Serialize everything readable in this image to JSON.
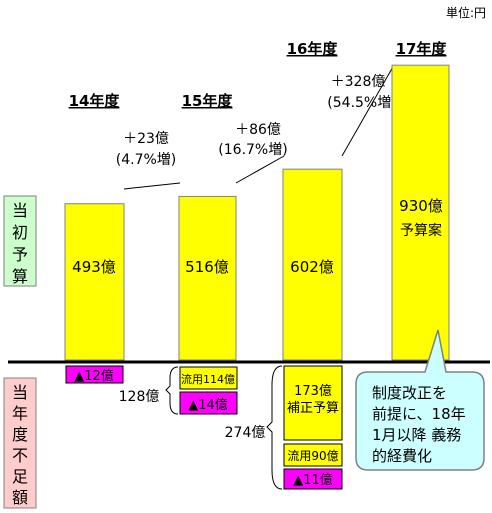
{
  "unit_label": "単位:円",
  "row_labels": {
    "budget": "当初予算",
    "shortfall": "当年度不足額"
  },
  "years": [
    "14年度",
    "15年度",
    "16年度",
    "17年度"
  ],
  "growth": [
    {
      "amount": "＋23億",
      "pct": "(4.7%増)"
    },
    {
      "amount": "＋86億",
      "pct": "(16.7%増)"
    },
    {
      "amount": "＋328億",
      "pct": "(54.5%増)"
    }
  ],
  "bar_labels": [
    "493億",
    "516億",
    "602億",
    "930億"
  ],
  "bar_sublabels": [
    "",
    "",
    "",
    "予算案"
  ],
  "shortfall": {
    "y14": {
      "deficit": "▲12億"
    },
    "y15": {
      "ryuyo": "流用114億",
      "deficit": "▲14億",
      "total": "128億"
    },
    "y16": {
      "hosei": "173億\n補正予算",
      "ryuyo": "流用90億",
      "deficit": "▲11億",
      "total": "274億"
    }
  },
  "callout": "制度改正を\n前提に、18年\n1月以降 義務\n的経費化",
  "colors": {
    "bar": "#ffff00",
    "deficit": "#ff00ff",
    "budget_label_bg": "#ccffcc",
    "shortfall_label_bg": "#ffcccc",
    "callout_bg": "#ccffff"
  },
  "chart_data": {
    "type": "bar",
    "categories": [
      "14年度",
      "15年度",
      "16年度",
      "17年度"
    ],
    "values": [
      493,
      516,
      602,
      930
    ],
    "ylabel": "単位:円",
    "negative_values": {
      "14年度": [
        {
          "label": "▲12億",
          "value": -12
        }
      ],
      "15年度": [
        {
          "label": "流用114億",
          "value": -114
        },
        {
          "label": "▲14億",
          "value": -14
        }
      ],
      "16年度": [
        {
          "label": "173億 補正予算",
          "value": -173
        },
        {
          "label": "流用90億",
          "value": -90
        },
        {
          "label": "▲11億",
          "value": -11
        }
      ]
    },
    "negative_totals": {
      "15年度": 128,
      "16年度": 274
    }
  }
}
